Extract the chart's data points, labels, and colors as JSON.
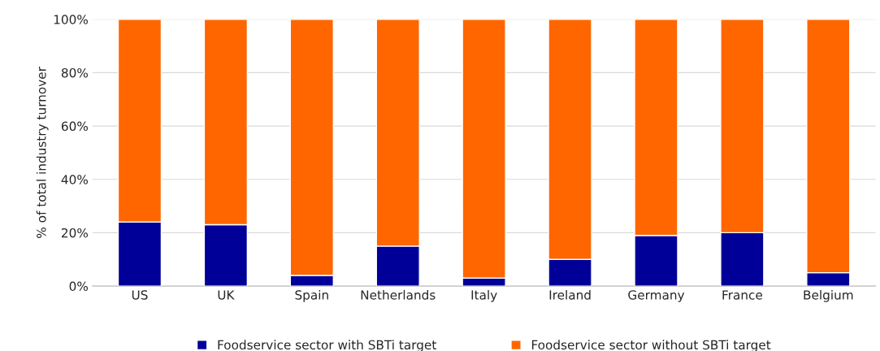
{
  "chart_data": {
    "type": "bar",
    "stacked": true,
    "ylabel": "% of total industry turnover",
    "categories": [
      "US",
      "UK",
      "Spain",
      "Netherlands",
      "Italy",
      "Ireland",
      "Germany",
      "France",
      "Belgium"
    ],
    "series": [
      {
        "name": "Foodservice sector with SBTi target",
        "color": "#000099",
        "values": [
          24,
          23,
          4,
          15,
          3,
          10,
          19,
          20,
          5
        ]
      },
      {
        "name": "Foodservice sector without SBTi target",
        "color": "#ff6600",
        "values": [
          76,
          77,
          96,
          85,
          97,
          90,
          81,
          80,
          95
        ]
      }
    ],
    "ylim": [
      0,
      100
    ],
    "yticks": [
      {
        "value": 0,
        "label": "0%"
      },
      {
        "value": 20,
        "label": "20%"
      },
      {
        "value": 40,
        "label": "40%"
      },
      {
        "value": 60,
        "label": "60%"
      },
      {
        "value": 80,
        "label": "80%"
      },
      {
        "value": 100,
        "label": "100%"
      }
    ],
    "grid": "y",
    "legend": "bottom"
  }
}
